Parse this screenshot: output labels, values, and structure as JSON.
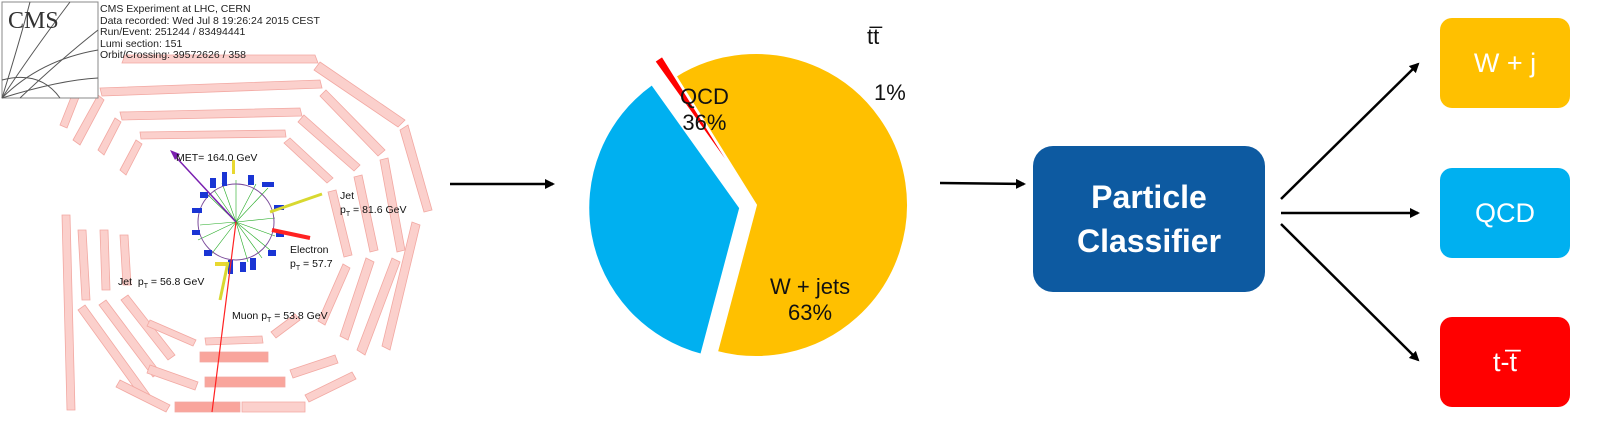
{
  "event_display": {
    "logo_text": "CMS",
    "info_lines": [
      "CMS Experiment at LHC, CERN",
      "Data recorded: Wed Jul  8 19:26:24 2015 CEST",
      "Run/Event: 251244 / 83494441",
      "Lumi section: 151",
      "Orbit/Crossing: 39572626 / 358"
    ],
    "met_label": "MET= 164.0 GeV",
    "jet1_name": "Jet",
    "jet1_pt": "= 81.6 GeV",
    "electron_name": "Electron",
    "electron_pt": "= 57.7",
    "jet2_name": "Jet",
    "jet2_pt": "= 56.8 GeV",
    "muon_name": "Muon",
    "muon_pt": "= 53.8 GeV",
    "pt_symbol": "p",
    "pt_sub": "T"
  },
  "chart_data": {
    "type": "pie",
    "slices": [
      {
        "label": "QCD",
        "value": 36,
        "display": "36%",
        "color": "#00b0f0"
      },
      {
        "label": "tt̅",
        "value": 1,
        "display": "1%",
        "color": "#ff0000"
      },
      {
        "label": "W + jets",
        "value": 63,
        "display": "63%",
        "color": "#ffc000"
      }
    ]
  },
  "classifier": {
    "line1": "Particle",
    "line2": "Classifier",
    "color": "#0d5aa1"
  },
  "outputs": [
    {
      "label": "W + j",
      "color": "#ffc000"
    },
    {
      "label": "QCD",
      "color": "#00b0f0"
    },
    {
      "label": "t-t̅",
      "color": "#ff0000"
    }
  ]
}
